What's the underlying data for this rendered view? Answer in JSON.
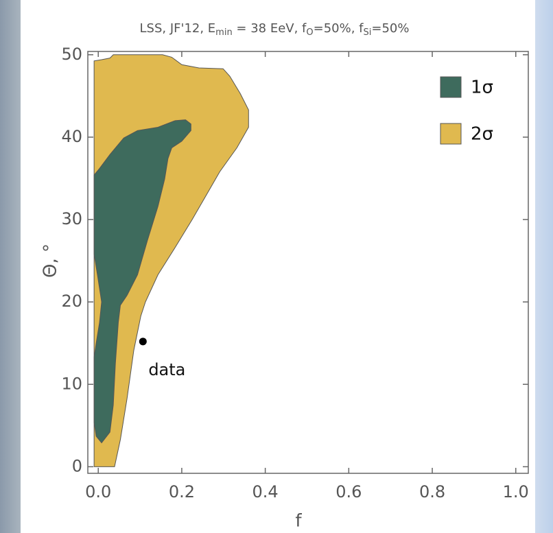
{
  "chart_data": {
    "type": "contour",
    "title_parts": [
      {
        "text": "LSS, JF'12, E",
        "sub": false
      },
      {
        "text": "min",
        "sub": true
      },
      {
        "text": " = 38 EeV, f",
        "sub": false
      },
      {
        "text": "O",
        "sub": true
      },
      {
        "text": "=50%, f",
        "sub": false
      },
      {
        "text": "Si",
        "sub": true
      },
      {
        "text": "=50%",
        "sub": false
      }
    ],
    "xlabel": "f",
    "ylabel": "Θ, °",
    "xlim": [
      -0.025,
      1.03
    ],
    "ylim": [
      -0.8,
      50.4
    ],
    "xticks": [
      {
        "value": 0,
        "label": "0.0"
      },
      0.2,
      0.4,
      0.6,
      0.8,
      {
        "value": 1,
        "label": "1.0"
      }
    ],
    "yticks": [
      0,
      10,
      20,
      30,
      40,
      50
    ],
    "legend": "top-right",
    "series": [
      {
        "name": "2σ",
        "color": "#e0b94f",
        "x": [
          -0.01,
          -0.01,
          0.008,
          0.028,
          0.036,
          0.154,
          0.176,
          0.2,
          0.241,
          0.299,
          0.315,
          0.34,
          0.36,
          0.36,
          0.332,
          0.291,
          0.258,
          0.225,
          0.184,
          0.143,
          0.113,
          0.102,
          0.085,
          0.069,
          0.053,
          0.039
        ],
        "y": [
          0,
          49.25,
          49.4,
          49.6,
          50,
          50,
          49.7,
          48.8,
          48.4,
          48.3,
          47.4,
          45.3,
          43.3,
          41.2,
          38.7,
          35.8,
          32.9,
          30.0,
          26.6,
          23.3,
          20.0,
          18.3,
          14.1,
          8.3,
          3.3,
          0
        ]
      },
      {
        "name": "1σ",
        "color": "#3e6b5d",
        "x": [
          0.008,
          0.028,
          0.036,
          0.041,
          0.048,
          0.053,
          0.069,
          0.094,
          0.118,
          0.143,
          0.159,
          0.167,
          0.176,
          0.2,
          0.222,
          0.222,
          0.209,
          0.184,
          0.143,
          0.094,
          0.061,
          0.028,
          0.003,
          -0.01,
          -0.01,
          -0.002,
          0.008,
          0.003,
          -0.005,
          -0.01,
          -0.01,
          -0.005
        ],
        "y": [
          2.9,
          4.2,
          7.5,
          12.5,
          17.5,
          19.6,
          20.8,
          23.3,
          27.5,
          31.6,
          34.9,
          37.4,
          38.7,
          39.5,
          40.8,
          41.6,
          42.1,
          42.0,
          41.2,
          40.8,
          39.9,
          37.9,
          36.2,
          35.4,
          25.8,
          23.3,
          20.0,
          17.5,
          15.0,
          13.3,
          5.4,
          3.7
        ]
      }
    ],
    "legend_order": [
      1,
      0
    ],
    "points": [
      {
        "label": "data",
        "x": 0.107,
        "y": 15.2
      }
    ]
  }
}
